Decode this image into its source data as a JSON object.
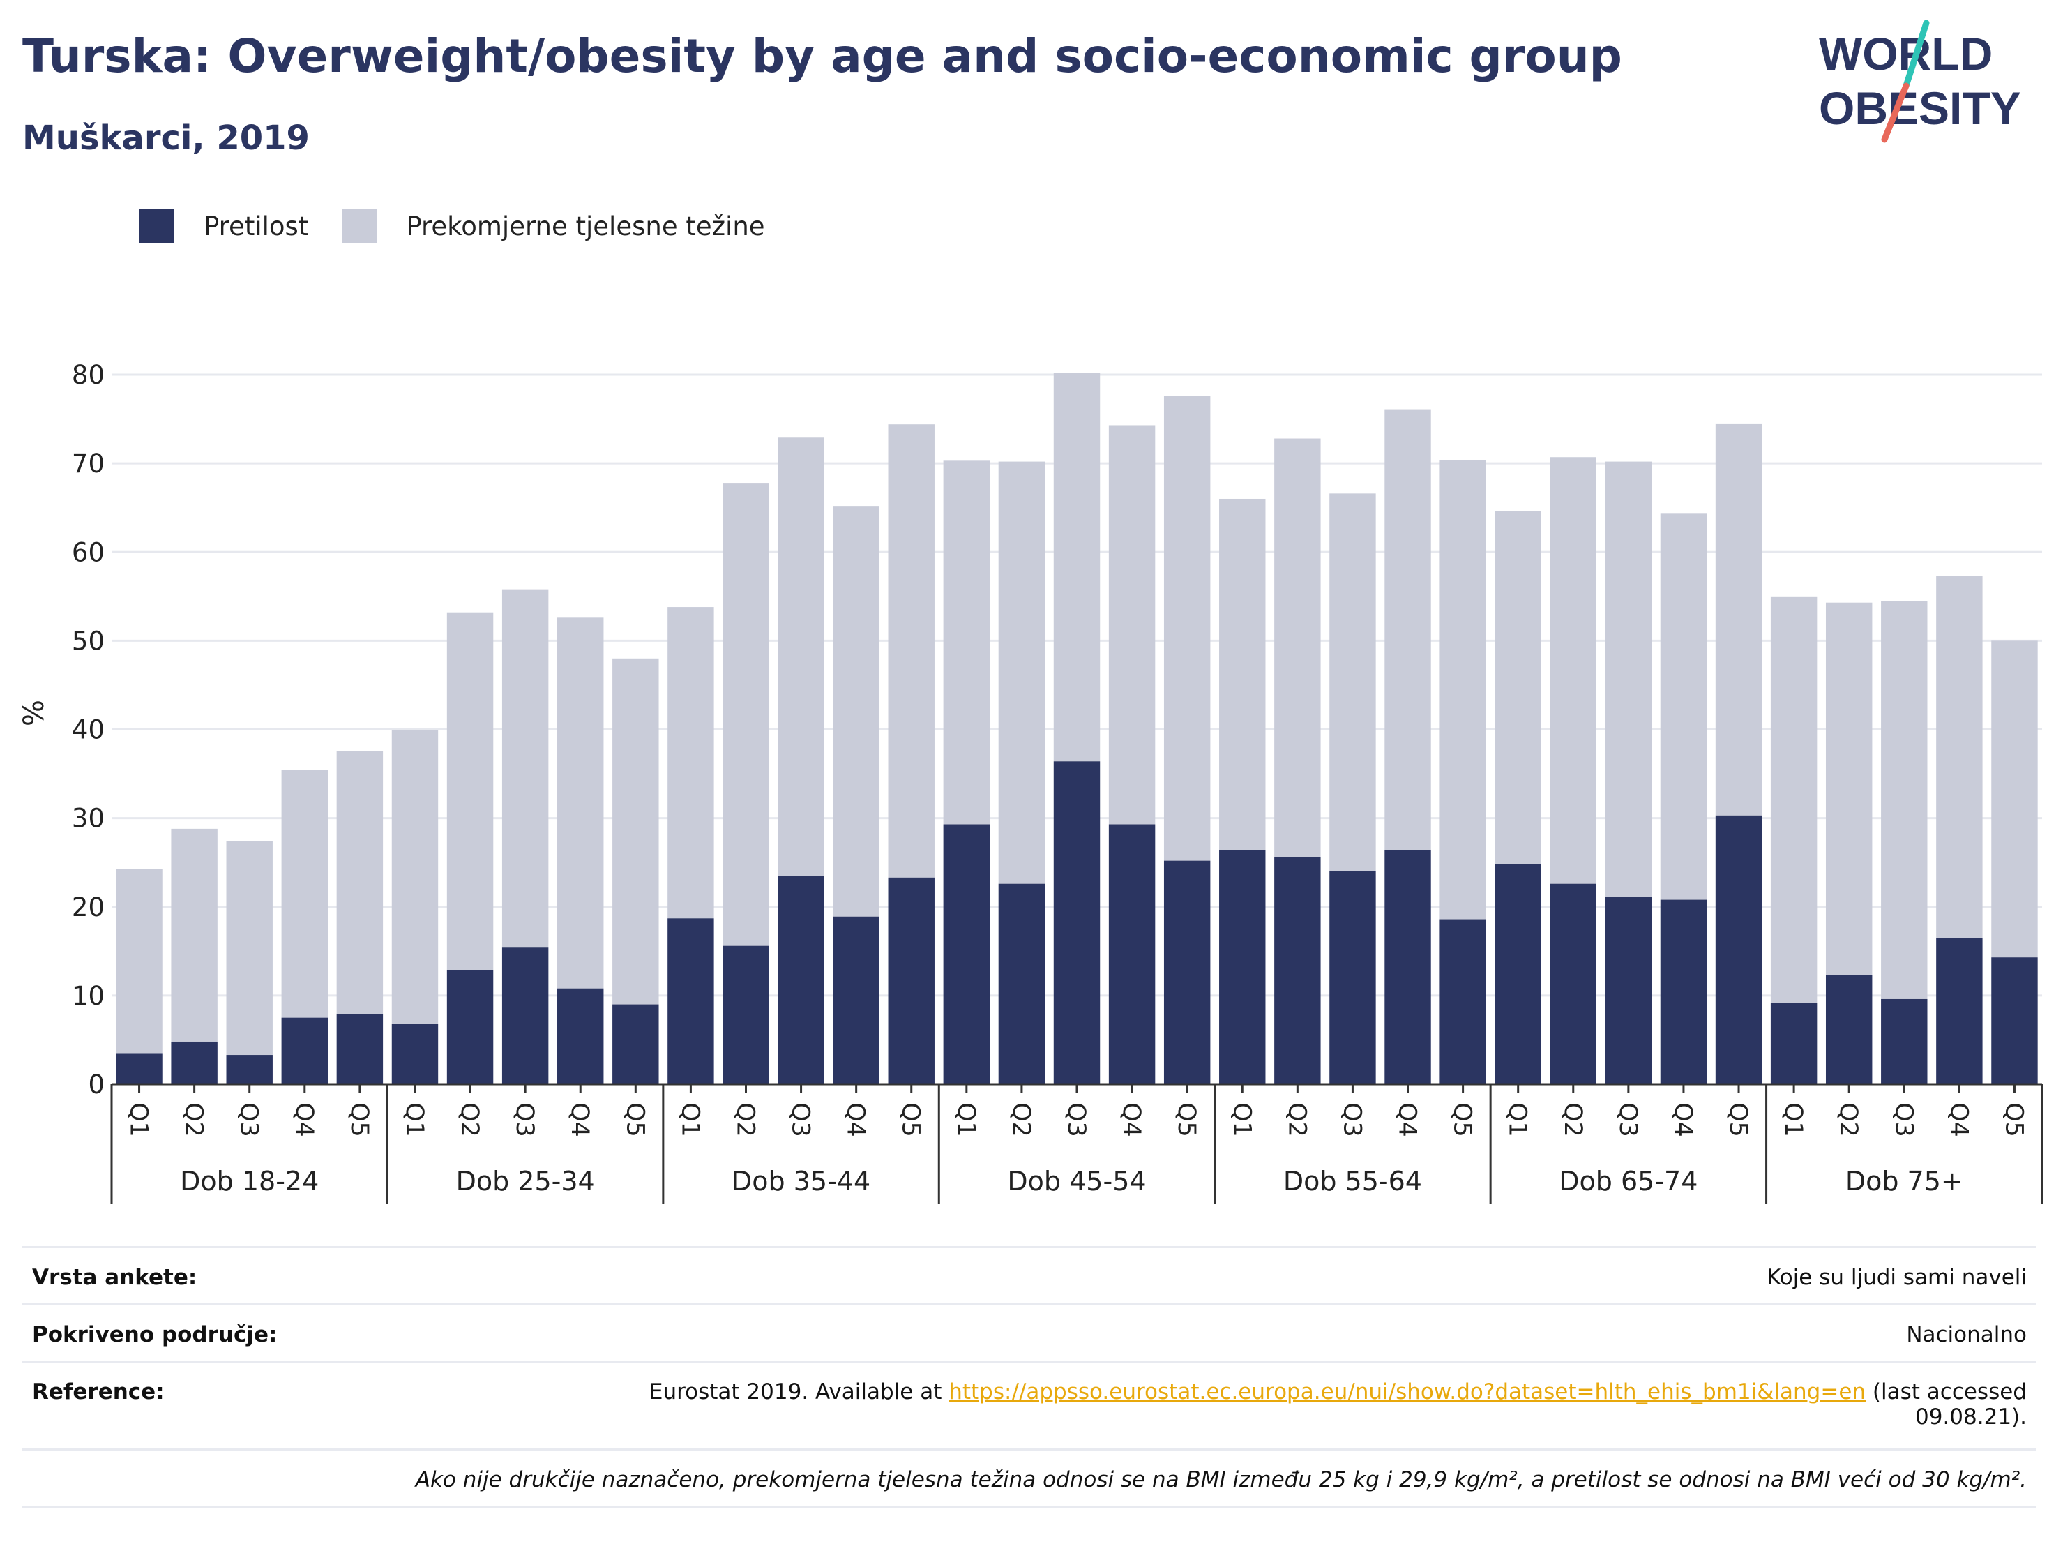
{
  "title": "Turska: Overweight/obesity by age and socio-economic group",
  "subtitle": "Muškarci, 2019",
  "logo": {
    "line1": "WORLD",
    "line2": "OBESITY",
    "accent_colors": [
      "#2ec4b6",
      "#e8685a"
    ]
  },
  "legend": [
    {
      "label": "Pretilost",
      "color": "#2b3561"
    },
    {
      "label": "Prekomjerne tjelesne težine",
      "color": "#c9ccd9"
    }
  ],
  "chart_data": {
    "type": "bar",
    "stacked": true,
    "ylabel": "%",
    "ylim": [
      0,
      80
    ],
    "yticks": [
      0,
      10,
      20,
      30,
      40,
      50,
      60,
      70,
      80
    ],
    "grid": true,
    "legend_position": "top-left",
    "groups": [
      "Dob 18-24",
      "Dob 25-34",
      "Dob 35-44",
      "Dob 45-54",
      "Dob 55-64",
      "Dob 65-74",
      "Dob 75+"
    ],
    "quintiles": [
      "Q1",
      "Q2",
      "Q3",
      "Q4",
      "Q5"
    ],
    "series": [
      {
        "name": "Pretilost",
        "color": "#2b3561",
        "values": [
          3.5,
          4.8,
          3.3,
          7.5,
          7.9,
          6.8,
          12.9,
          15.4,
          10.8,
          9.0,
          18.7,
          15.6,
          23.5,
          18.9,
          23.3,
          29.3,
          22.6,
          36.4,
          29.3,
          25.2,
          26.4,
          25.6,
          24.0,
          26.4,
          18.6,
          24.8,
          22.6,
          21.1,
          20.8,
          30.3,
          9.2,
          12.3,
          9.6,
          16.5,
          14.3
        ]
      },
      {
        "name": "Prekomjerne tjelesne težine",
        "color": "#c9ccd9",
        "values": [
          20.8,
          24.0,
          24.1,
          27.9,
          29.7,
          33.1,
          40.3,
          40.4,
          41.8,
          39.0,
          35.1,
          52.2,
          49.4,
          46.3,
          51.1,
          41.0,
          47.6,
          43.8,
          45.0,
          52.4,
          39.6,
          47.2,
          42.6,
          49.7,
          51.8,
          39.8,
          48.1,
          49.1,
          43.6,
          44.2,
          45.8,
          42.0,
          44.9,
          40.8,
          35.7
        ]
      }
    ]
  },
  "info": {
    "survey_key": "Vrsta ankete:",
    "survey_val": "Koje su ljudi sami naveli",
    "area_key": "Pokriveno područje:",
    "area_val": "Nacionalno",
    "ref_key": "Reference:",
    "ref_pre": "Eurostat 2019. Available at ",
    "ref_link": "https://appsso.eurostat.ec.europa.eu/nui/show.do?dataset=hlth_ehis_bm1i&lang=en",
    "ref_post": " (last accessed 09.08.21).",
    "note": "Ako nije drukčije naznačeno, prekomjerna tjelesna težina odnosi se na BMI između 25 kg i 29,9 kg/m², a pretilost se odnosi na BMI veći od 30 kg/m²."
  }
}
